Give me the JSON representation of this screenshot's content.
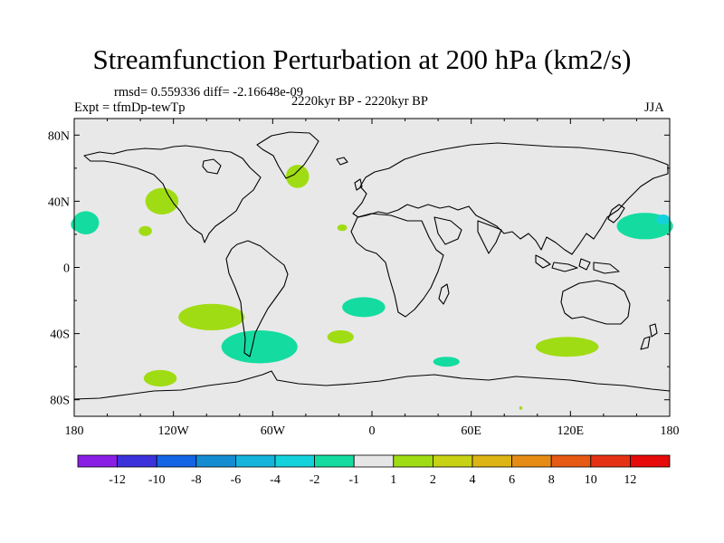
{
  "chart_data": {
    "type": "heatmap",
    "title": "Streamfunction Perturbation at 200 hPa (km2/s)",
    "stats_text": "rmsd= 0.559336 diff= -2.16648e-09",
    "experiment_text": "Expt = tfmDp-tewTp",
    "period_text": "2220kyr BP - 2220kyr BP",
    "season": "JJA",
    "xlim": [
      -180,
      180
    ],
    "ylim": [
      -90,
      90
    ],
    "x_ticks": [
      {
        "value": -180,
        "label": "180"
      },
      {
        "value": -120,
        "label": "120W"
      },
      {
        "value": -60,
        "label": "60W"
      },
      {
        "value": 0,
        "label": "0"
      },
      {
        "value": 60,
        "label": "60E"
      },
      {
        "value": 120,
        "label": "120E"
      },
      {
        "value": 180,
        "label": "180"
      }
    ],
    "y_ticks": [
      {
        "value": 80,
        "label": "80N"
      },
      {
        "value": 40,
        "label": "40N"
      },
      {
        "value": 0,
        "label": "0"
      },
      {
        "value": -40,
        "label": "40S"
      },
      {
        "value": -80,
        "label": "80S"
      }
    ],
    "colorbar": {
      "labels": [
        "-12",
        "-10",
        "-8",
        "-6",
        "-4",
        "-2",
        "-1",
        "1",
        "2",
        "4",
        "6",
        "8",
        "10",
        "12"
      ],
      "colors": [
        "#8a1ee6",
        "#3c32dc",
        "#1464e6",
        "#148cd2",
        "#14b4dc",
        "#14d2dc",
        "#14dca0",
        "#e6e6e6",
        "#a0dc14",
        "#c8d214",
        "#dcb414",
        "#e68c14",
        "#e65a14",
        "#e63214",
        "#e60a0a"
      ]
    },
    "anomalies": [
      {
        "lon": 90,
        "lat": -85,
        "rx": 1,
        "ry": 1,
        "level": "1"
      },
      {
        "lon": -173,
        "lat": 27,
        "rx": 8,
        "ry": 7,
        "level": "-2 to -1"
      },
      {
        "lon": -178,
        "lat": 26,
        "rx": 4,
        "ry": 4,
        "level": "-2 to -1"
      },
      {
        "lon": 165,
        "lat": 25,
        "rx": 17,
        "ry": 8,
        "level": "-2 to -1"
      },
      {
        "lon": 176,
        "lat": 29,
        "rx": 4,
        "ry": 3,
        "level": "-4 to -2"
      },
      {
        "lon": -97,
        "lat": -30,
        "rx": 20,
        "ry": 8,
        "level": "1 to 2"
      },
      {
        "lon": -68,
        "lat": -48,
        "rx": 23,
        "ry": 10,
        "level": "-2 to -1"
      },
      {
        "lon": -5,
        "lat": -24,
        "rx": 13,
        "ry": 6,
        "level": "-2 to -1"
      },
      {
        "lon": 45,
        "lat": -57,
        "rx": 8,
        "ry": 3,
        "level": "-2 to -1"
      },
      {
        "lon": 118,
        "lat": -48,
        "rx": 19,
        "ry": 6,
        "level": "1 to 2"
      },
      {
        "lon": -127,
        "lat": 40,
        "rx": 10,
        "ry": 8,
        "level": "1 to 2"
      },
      {
        "lon": -45,
        "lat": 55,
        "rx": 7,
        "ry": 7,
        "level": "1 to 2"
      },
      {
        "lon": -137,
        "lat": 22,
        "rx": 4,
        "ry": 3,
        "level": "1 to 2"
      },
      {
        "lon": -19,
        "lat": -42,
        "rx": 8,
        "ry": 4,
        "level": "1 to 2"
      },
      {
        "lon": -128,
        "lat": -67,
        "rx": 10,
        "ry": 5,
        "level": "1 to 2"
      },
      {
        "lon": -18,
        "lat": 24,
        "rx": 3,
        "ry": 2,
        "level": "1 to 2"
      }
    ]
  }
}
